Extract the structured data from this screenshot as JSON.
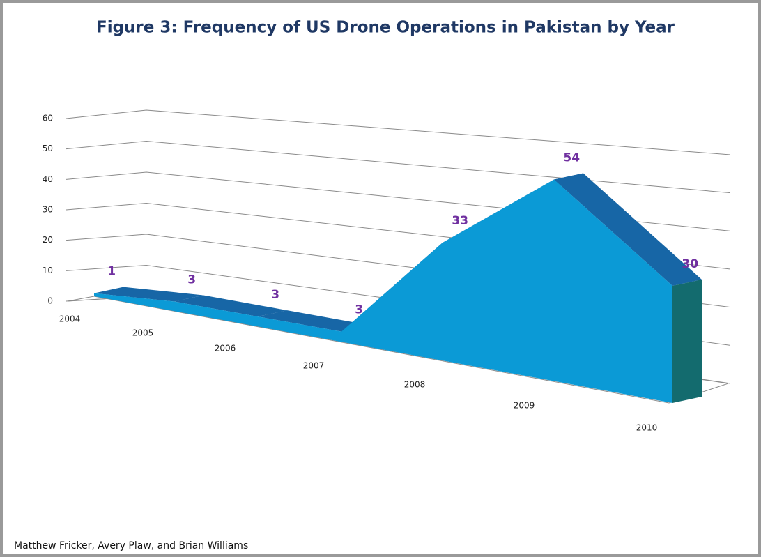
{
  "chart_data": {
    "type": "area3d",
    "title": "Figure 3: Frequency of US Drone Operations in Pakistan by Year",
    "categories": [
      "2004",
      "2005",
      "2006",
      "2007",
      "2008",
      "2009",
      "2010"
    ],
    "values": [
      1,
      3,
      3,
      3,
      33,
      54,
      30
    ],
    "color": "#0b9ad6",
    "ylim": [
      0,
      60
    ],
    "yticks": [
      0,
      10,
      20,
      30,
      40,
      50,
      60
    ],
    "grid": true,
    "footer": "Matthew Fricker, Avery Plaw, and Brian Williams"
  }
}
